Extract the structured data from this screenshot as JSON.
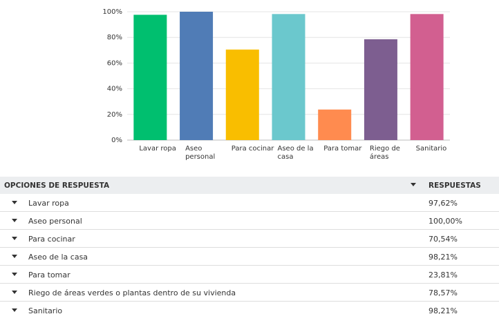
{
  "chart_data": {
    "type": "bar",
    "categories": [
      "Lavar ropa",
      "Aseo personal",
      "Para cocinar",
      "Aseo de la casa",
      "Para tomar",
      "Riego de áreas",
      "Sanitario"
    ],
    "values": [
      97.62,
      100,
      70.54,
      98.21,
      23.81,
      78.57,
      98.21
    ],
    "colors": [
      "#00bf6f",
      "#507cb6",
      "#f9be00",
      "#6bc8cd",
      "#ff8b4f",
      "#7d5e90",
      "#d25f90"
    ],
    "ylim": [
      0,
      100
    ],
    "yticks": [
      {
        "value": 0,
        "label": "0%"
      },
      {
        "value": 20,
        "label": "20%"
      },
      {
        "value": 40,
        "label": "40%"
      },
      {
        "value": 60,
        "label": "60%"
      },
      {
        "value": 80,
        "label": "80%"
      },
      {
        "value": 100,
        "label": "100%"
      }
    ],
    "grid": true
  },
  "table": {
    "headers": [
      "OPCIONES DE RESPUESTA",
      "RESPUESTAS"
    ],
    "rows": [
      [
        "Lavar ropa",
        "97,62%"
      ],
      [
        "Aseo personal",
        "100,00%"
      ],
      [
        "Para cocinar",
        "70,54%"
      ],
      [
        "Aseo de la casa",
        "98,21%"
      ],
      [
        "Para tomar",
        "23,81%"
      ],
      [
        "Riego de áreas verdes o plantas dentro de su vivienda",
        "78,57%"
      ],
      [
        "Sanitario",
        "98,21%"
      ]
    ]
  }
}
